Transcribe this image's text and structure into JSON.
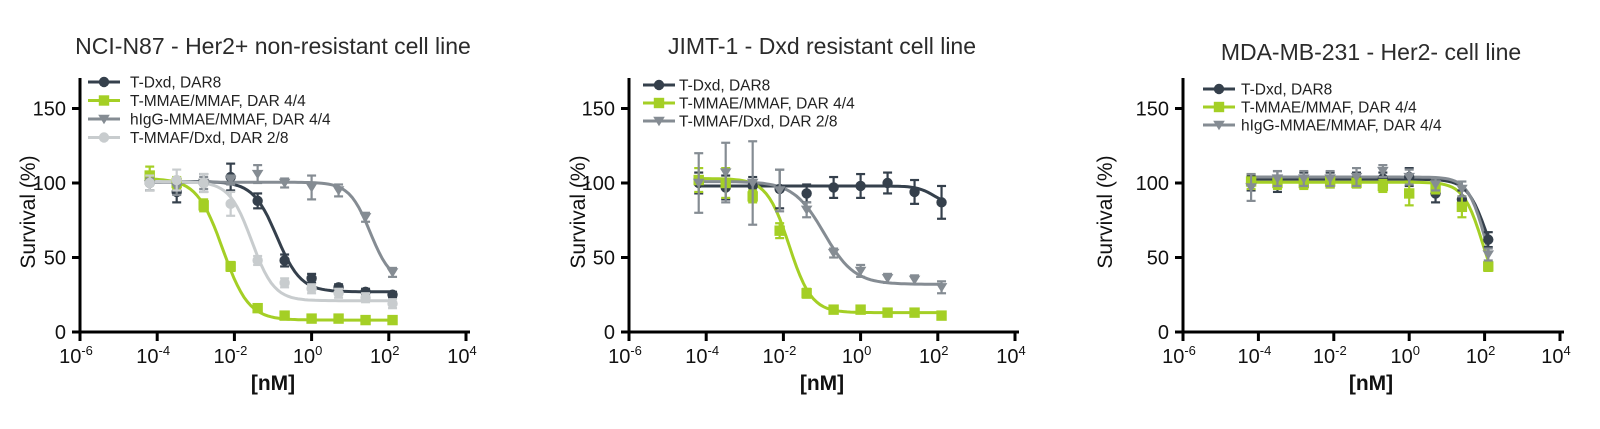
{
  "colors": {
    "dark_slate": "#35404C",
    "lime_green": "#A4CF25",
    "medium_gray": "#858C93",
    "light_gray": "#C8CCCE",
    "axis_black": "#000000",
    "title_text": "#2B2B2B"
  },
  "chart_data": [
    {
      "type": "line",
      "title": "NCI-N87 - Her2+ non-resistant cell line",
      "xlabel": "[nM]",
      "ylabel": "Survival (%)",
      "x_scale": "log10",
      "x_tick_exponents": [
        -6,
        -4,
        -2,
        0,
        2,
        4
      ],
      "y_ticks": [
        0,
        50,
        100,
        150
      ],
      "ylim": [
        0,
        170
      ],
      "legend_position": "top-left",
      "x_values_nM": [
        6.4e-05,
        0.00032,
        0.0016,
        0.008,
        0.04,
        0.2,
        1,
        5,
        25,
        125
      ],
      "series": [
        {
          "name": "T-Dxd, DAR8",
          "marker": "circle",
          "color": "dark_slate",
          "values": [
            100,
            94,
            100,
            104,
            88,
            48,
            36,
            30,
            27,
            25
          ],
          "errors": [
            5,
            7,
            6,
            9,
            5,
            4,
            3,
            2,
            2,
            2
          ],
          "fit": {
            "top": 101,
            "bottom": 27,
            "log_ec50": -0.9,
            "hill": 1.4
          }
        },
        {
          "name": "T-MMAE/MMAF, DAR 4/4",
          "marker": "square",
          "color": "lime_green",
          "values": [
            105,
            100,
            85,
            44,
            16,
            11,
            9,
            9,
            8,
            8
          ],
          "errors": [
            6,
            4,
            4,
            3,
            2,
            2,
            2,
            2,
            2,
            2
          ],
          "fit": {
            "top": 103,
            "bottom": 8,
            "log_ec50": -2.3,
            "hill": 1.3
          }
        },
        {
          "name": "hIgG-MMAE/MMAF, DAR 4/4",
          "marker": "triangle-down",
          "color": "medium_gray",
          "values": [
            99,
            97,
            100,
            102,
            106,
            100,
            97,
            95,
            77,
            40
          ],
          "errors": [
            4,
            5,
            4,
            3,
            6,
            3,
            8,
            4,
            3,
            3
          ],
          "fit": {
            "top": 100.5,
            "bottom": 33,
            "log_ec50": 1.52,
            "hill": 1.6
          }
        },
        {
          "name": "T-MMAF/Dxd, DAR 2/8",
          "marker": "circle",
          "color": "light_gray",
          "values": [
            100,
            102,
            100,
            86,
            48,
            33,
            29,
            26,
            23,
            19
          ],
          "errors": [
            5,
            7,
            6,
            8,
            3,
            3,
            3,
            3,
            3,
            3
          ],
          "fit": {
            "top": 101,
            "bottom": 21,
            "log_ec50": -1.55,
            "hill": 1.5
          }
        }
      ]
    },
    {
      "type": "line",
      "title": "JIMT-1 - Dxd resistant cell line",
      "xlabel": "[nM]",
      "ylabel": "Survival (%)",
      "x_scale": "log10",
      "x_tick_exponents": [
        -6,
        -4,
        -2,
        0,
        2,
        4
      ],
      "y_ticks": [
        0,
        50,
        100,
        150
      ],
      "ylim": [
        0,
        170
      ],
      "legend_position": "top-left",
      "x_values_nM": [
        6.4e-05,
        0.00032,
        0.0016,
        0.008,
        0.04,
        0.2,
        1,
        5,
        25,
        125
      ],
      "series": [
        {
          "name": "T-Dxd, DAR8",
          "marker": "circle",
          "color": "dark_slate",
          "values": [
            100,
            97,
            98,
            96,
            93,
            97,
            98,
            100,
            94,
            87
          ],
          "errors": [
            7,
            8,
            6,
            13,
            6,
            7,
            8,
            7,
            8,
            11
          ],
          "fit": {
            "top": 98,
            "bottom": 85,
            "log_ec50": 1.9,
            "hill": 2.0
          }
        },
        {
          "name": "T-MMAE/MMAF, DAR 4/4",
          "marker": "square",
          "color": "lime_green",
          "values": [
            102,
            100,
            91,
            68,
            26,
            15,
            15,
            13,
            13,
            11
          ],
          "errors": [
            8,
            10,
            4,
            5,
            3,
            2,
            2,
            2,
            2,
            2
          ],
          "fit": {
            "top": 103,
            "bottom": 13,
            "log_ec50": -1.85,
            "hill": 1.5
          }
        },
        {
          "name": "T-MMAF/Dxd, DAR 2/8",
          "marker": "triangle-down",
          "color": "medium_gray",
          "values": [
            100,
            107,
            100,
            95,
            82,
            53,
            41,
            36,
            35,
            30
          ],
          "errors": [
            20,
            20,
            28,
            14,
            5,
            3,
            4,
            3,
            3,
            4
          ],
          "fit": {
            "top": 101,
            "bottom": 32,
            "log_ec50": -0.95,
            "hill": 1.1
          }
        }
      ]
    },
    {
      "type": "line",
      "title": "MDA-MB-231 - Her2- cell line",
      "xlabel": "[nM]",
      "ylabel": "Survival (%)",
      "x_scale": "log10",
      "x_tick_exponents": [
        -6,
        -4,
        -2,
        0,
        2,
        4
      ],
      "y_ticks": [
        0,
        50,
        100,
        150
      ],
      "ylim": [
        0,
        170
      ],
      "legend_position": "top-left",
      "x_values_nM": [
        6.4e-05,
        0.00032,
        0.0016,
        0.008,
        0.04,
        0.2,
        1,
        5,
        25,
        125
      ],
      "series": [
        {
          "name": "T-Dxd, DAR8",
          "marker": "circle",
          "color": "dark_slate",
          "values": [
            100,
            101,
            102,
            102,
            102,
            103,
            104,
            93,
            89,
            62
          ],
          "errors": [
            5,
            7,
            5,
            5,
            5,
            4,
            6,
            6,
            6,
            5
          ],
          "fit": {
            "top": 102.5,
            "bottom": 30,
            "log_ec50": 2.05,
            "hill": 1.7
          }
        },
        {
          "name": "T-MMAE/MMAF, DAR 4/4",
          "marker": "square",
          "color": "lime_green",
          "values": [
            101,
            100,
            100,
            101,
            100,
            98,
            93,
            97,
            84,
            44
          ],
          "errors": [
            5,
            4,
            4,
            4,
            3,
            4,
            8,
            4,
            7,
            3
          ],
          "fit": {
            "top": 100.5,
            "bottom": 18,
            "log_ec50": 1.95,
            "hill": 1.7
          }
        },
        {
          "name": "hIgG-MMAE/MMAF, DAR 4/4",
          "marker": "triangle-down",
          "color": "medium_gray",
          "values": [
            97,
            103,
            103,
            103,
            104,
            108,
            104,
            99,
            96,
            52
          ],
          "errors": [
            9,
            5,
            5,
            5,
            6,
            4,
            5,
            4,
            5,
            4
          ],
          "fit": {
            "top": 104,
            "bottom": 14,
            "log_ec50": 2.05,
            "hill": 1.8
          }
        }
      ]
    }
  ]
}
